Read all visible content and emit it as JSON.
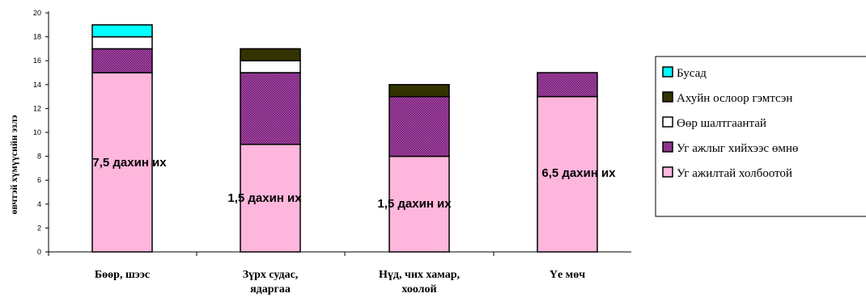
{
  "chart_data": {
    "type": "bar",
    "stacked": true,
    "ylabel": "өвчтэй хүмүүсийн эзлэ",
    "ylim": [
      0,
      20
    ],
    "ytick_step": 2,
    "grid": false,
    "legend_position": "right",
    "categories": [
      [
        "Бөөр, шээс"
      ],
      [
        "Зүрх судас,",
        "ядаргаа"
      ],
      [
        "Нүд, чих хамар,",
        "хоолой"
      ],
      [
        "Үе мөч"
      ]
    ],
    "series": [
      {
        "name": "Уг ажилтай холбоотой",
        "color": "#ffb6dc",
        "pattern": "solid",
        "values": [
          15,
          9,
          8,
          13
        ]
      },
      {
        "name": "Уг ажлыг хийхээс өмнө",
        "color": "#a040a0",
        "pattern": "checker",
        "values": [
          2,
          6,
          5,
          2
        ]
      },
      {
        "name": "Өөр шалтгаантай",
        "color": "#ffffff",
        "pattern": "solid",
        "values": [
          1,
          1,
          0,
          0
        ]
      },
      {
        "name": "Ахуйн ослоор гэмтсэн",
        "color": "#333300",
        "pattern": "solid",
        "values": [
          0,
          1,
          1,
          0
        ]
      },
      {
        "name": "Бусад",
        "color": "#00ffff",
        "pattern": "solid",
        "values": [
          1,
          0,
          0,
          0
        ]
      }
    ],
    "annotations": [
      "7,5 дахин их",
      "1,5 дахин их",
      "1,5 дахин их",
      "6,5 дахин их"
    ]
  }
}
